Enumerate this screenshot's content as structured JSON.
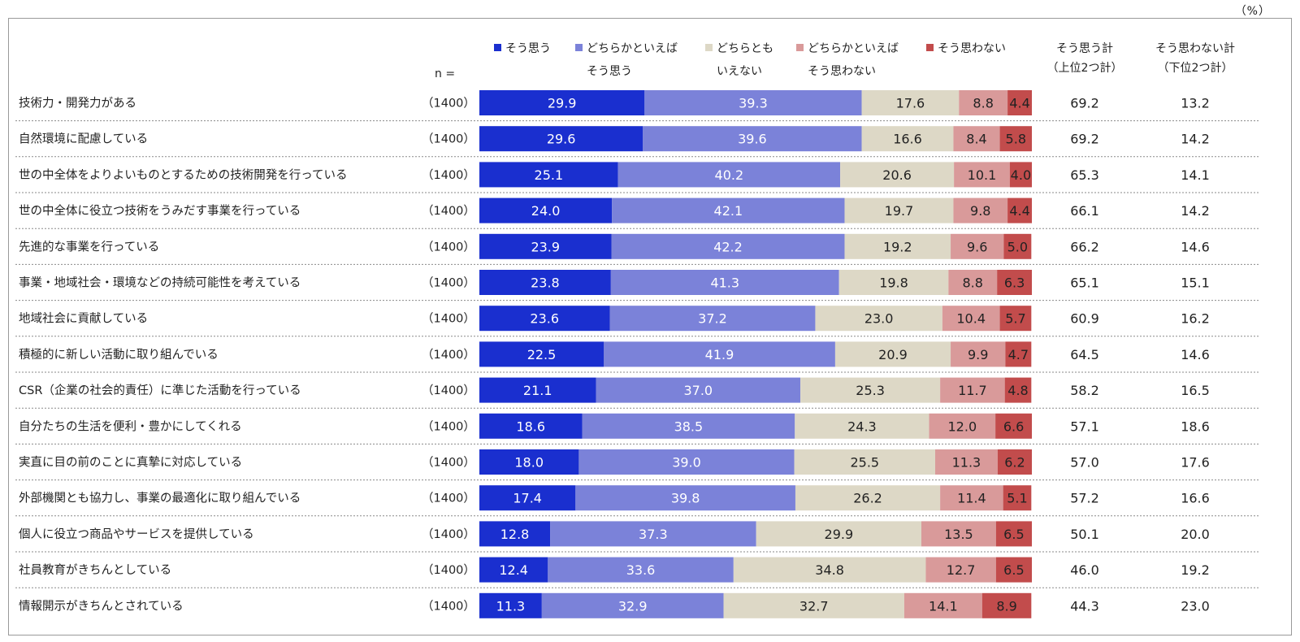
{
  "unit_label": "（%）",
  "n_header": "n =",
  "colors": {
    "c1": "#1a2fcf",
    "c2": "#7b82d9",
    "c3": "#ddd8c6",
    "c4": "#d99a9a",
    "c5": "#c24c4c"
  },
  "legend": [
    {
      "line1": "そう思う",
      "line2": ""
    },
    {
      "line1": "どちらかといえば",
      "line2": "そう思う"
    },
    {
      "line1": "どちらとも",
      "line2": "いえない"
    },
    {
      "line1": "どちらかといえば",
      "line2": "そう思わない"
    },
    {
      "line1": "そう思わない",
      "line2": ""
    }
  ],
  "summary_headers": [
    {
      "line1": "そう思う計",
      "line2": "（上位2つ計）"
    },
    {
      "line1": "そう思わない計",
      "line2": "（下位2つ計）"
    }
  ],
  "chart_data": {
    "type": "bar",
    "orientation": "horizontal-stacked-100",
    "categories": [
      "技術力・開発力がある",
      "自然環境に配慮している",
      "世の中全体をよりよいものとするための技術開発を行っている",
      "世の中全体に役立つ技術をうみだす事業を行っている",
      "先進的な事業を行っている",
      "事業・地域社会・環境などの持続可能性を考えている",
      "地域社会に貢献している",
      "積極的に新しい活動に取り組んでいる",
      "CSR（企業の社会的責任）に準じた活動を行っている",
      "自分たちの生活を便利・豊かにしてくれる",
      "実直に目の前のことに真摯に対応している",
      "外部機関とも協力し、事業の最適化に取り組んでいる",
      "個人に役立つ商品やサービスを提供している",
      "社員教育がきちんとしている",
      "情報開示がきちんとされている"
    ],
    "n": [
      "（1400）",
      "（1400）",
      "（1400）",
      "（1400）",
      "（1400）",
      "（1400）",
      "（1400）",
      "（1400）",
      "（1400）",
      "（1400）",
      "（1400）",
      "（1400）",
      "（1400）",
      "（1400）",
      "（1400）"
    ],
    "series": [
      {
        "name": "そう思う",
        "values": [
          29.9,
          29.6,
          25.1,
          24.0,
          23.9,
          23.8,
          23.6,
          22.5,
          21.1,
          18.6,
          18.0,
          17.4,
          12.8,
          12.4,
          11.3
        ]
      },
      {
        "name": "どちらかといえばそう思う",
        "values": [
          39.3,
          39.6,
          40.2,
          42.1,
          42.2,
          41.3,
          37.2,
          41.9,
          37.0,
          38.5,
          39.0,
          39.8,
          37.3,
          33.6,
          32.9
        ]
      },
      {
        "name": "どちらともいえない",
        "values": [
          17.6,
          16.6,
          20.6,
          19.7,
          19.2,
          19.8,
          23.0,
          20.9,
          25.3,
          24.3,
          25.5,
          26.2,
          29.9,
          34.8,
          32.7
        ]
      },
      {
        "name": "どちらかといえばそう思わない",
        "values": [
          8.8,
          8.4,
          10.1,
          9.8,
          9.6,
          8.8,
          10.4,
          9.9,
          11.7,
          12.0,
          11.3,
          11.4,
          13.5,
          12.7,
          14.1
        ]
      },
      {
        "name": "そう思わない",
        "values": [
          4.4,
          5.8,
          4.0,
          4.4,
          5.0,
          6.3,
          5.7,
          4.7,
          4.8,
          6.6,
          6.2,
          5.1,
          6.5,
          6.5,
          8.9
        ]
      }
    ],
    "top2_total": [
      69.2,
      69.2,
      65.3,
      66.1,
      66.2,
      65.1,
      60.9,
      64.5,
      58.2,
      57.1,
      57.0,
      57.2,
      50.1,
      46.0,
      44.3
    ],
    "bottom2_total": [
      13.2,
      14.2,
      14.1,
      14.2,
      14.6,
      15.1,
      16.2,
      14.6,
      16.5,
      18.6,
      17.6,
      16.6,
      20.0,
      19.2,
      23.0
    ],
    "xlim": [
      0,
      100
    ]
  }
}
